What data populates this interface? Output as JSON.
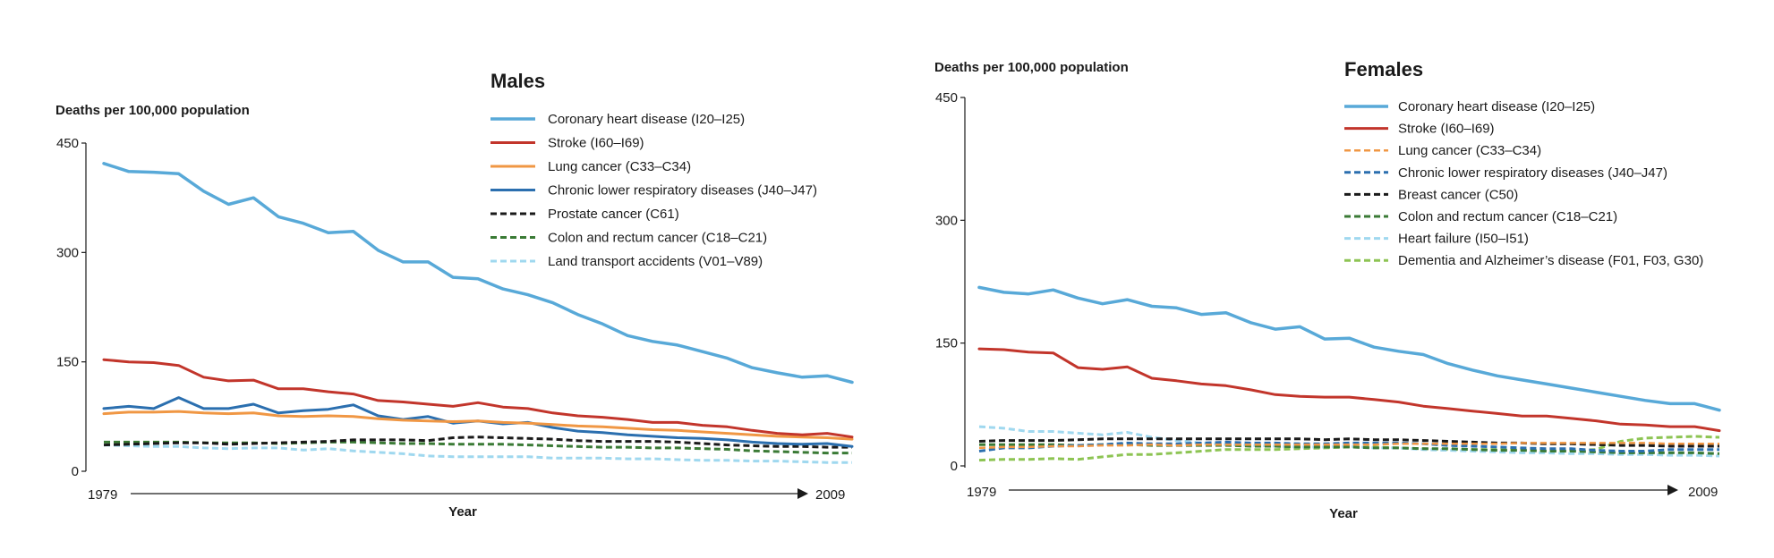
{
  "chart_data": [
    {
      "type": "line",
      "title": "Males",
      "ylabel": "Deaths per 100,000 population",
      "xlabel": "Year",
      "x_start_label": "1979",
      "x_end_label": "2009",
      "ylim": [
        0,
        450
      ],
      "yticks": [
        "0",
        "150",
        "300",
        "450"
      ],
      "x": [
        1979,
        1980,
        1981,
        1982,
        1983,
        1984,
        1985,
        1986,
        1987,
        1988,
        1989,
        1990,
        1991,
        1992,
        1993,
        1994,
        1995,
        1996,
        1997,
        1998,
        1999,
        2000,
        2001,
        2002,
        2003,
        2004,
        2005,
        2006,
        2007,
        2008,
        2009
      ],
      "legend_position": "top-right",
      "series": [
        {
          "name": "Coronary heart disease (I20–I25)",
          "color": "#58a9d8",
          "dash": false,
          "width": 3.5,
          "values": [
            422,
            411,
            410,
            408,
            384,
            366,
            375,
            349,
            340,
            327,
            329,
            303,
            287,
            287,
            266,
            264,
            250,
            242,
            231,
            215,
            202,
            186,
            178,
            173,
            164,
            155,
            142,
            135,
            129,
            131,
            122
          ]
        },
        {
          "name": "Stroke (I60–I69)",
          "color": "#c2352b",
          "dash": false,
          "width": 3,
          "values": [
            153,
            150,
            149,
            145,
            129,
            124,
            125,
            113,
            113,
            109,
            106,
            97,
            95,
            92,
            89,
            94,
            88,
            86,
            80,
            76,
            74,
            71,
            67,
            67,
            63,
            61,
            56,
            52,
            50,
            52,
            47
          ]
        },
        {
          "name": "Lung cancer (C33–C34)",
          "color": "#f09744",
          "dash": false,
          "width": 3,
          "values": [
            79,
            81,
            81,
            82,
            80,
            79,
            80,
            76,
            75,
            76,
            75,
            72,
            70,
            69,
            68,
            69,
            67,
            66,
            64,
            62,
            61,
            59,
            57,
            56,
            54,
            52,
            50,
            48,
            47,
            46,
            44
          ]
        },
        {
          "name": "Chronic lower respiratory diseases (J40–J47)",
          "color": "#2b6faf",
          "dash": false,
          "width": 3,
          "values": [
            86,
            89,
            86,
            101,
            86,
            86,
            92,
            80,
            83,
            85,
            91,
            76,
            71,
            75,
            66,
            69,
            65,
            67,
            60,
            55,
            53,
            50,
            48,
            46,
            45,
            43,
            40,
            38,
            37,
            38,
            34
          ]
        },
        {
          "name": "Prostate cancer (C61)",
          "color": "#1a1a1a",
          "dash": true,
          "width": 3,
          "values": [
            36,
            37,
            38,
            39,
            39,
            37,
            38,
            39,
            40,
            41,
            43,
            43,
            43,
            42,
            46,
            47,
            46,
            45,
            44,
            42,
            41,
            41,
            41,
            40,
            38,
            36,
            35,
            34,
            34,
            33,
            33
          ]
        },
        {
          "name": "Colon and rectum cancer (C18–C21)",
          "color": "#3a7a35",
          "dash": true,
          "width": 3,
          "values": [
            40,
            40,
            40,
            40,
            39,
            39,
            39,
            38,
            39,
            40,
            40,
            39,
            38,
            38,
            37,
            37,
            37,
            36,
            35,
            34,
            33,
            33,
            32,
            32,
            31,
            30,
            28,
            27,
            26,
            25,
            25
          ]
        },
        {
          "name": "Land transport accidents (V01–V89)",
          "color": "#9fd8ef",
          "dash": true,
          "width": 3,
          "values": [
            36,
            35,
            34,
            34,
            32,
            31,
            32,
            32,
            29,
            31,
            28,
            26,
            24,
            21,
            20,
            20,
            20,
            20,
            18,
            18,
            18,
            17,
            17,
            16,
            15,
            15,
            14,
            14,
            13,
            12,
            12
          ]
        }
      ]
    },
    {
      "type": "line",
      "title": "Females",
      "ylabel": "Deaths per 100,000 population",
      "xlabel": "Year",
      "x_start_label": "1979",
      "x_end_label": "2009",
      "ylim": [
        0,
        450
      ],
      "yticks": [
        "0",
        "150",
        "300",
        "450"
      ],
      "x": [
        1979,
        1980,
        1981,
        1982,
        1983,
        1984,
        1985,
        1986,
        1987,
        1988,
        1989,
        1990,
        1991,
        1992,
        1993,
        1994,
        1995,
        1996,
        1997,
        1998,
        1999,
        2000,
        2001,
        2002,
        2003,
        2004,
        2005,
        2006,
        2007,
        2008,
        2009
      ],
      "legend_position": "top-right",
      "series": [
        {
          "name": "Coronary heart disease (I20–I25)",
          "color": "#58a9d8",
          "dash": false,
          "width": 3.5,
          "values": [
            218,
            212,
            210,
            215,
            205,
            198,
            203,
            195,
            193,
            185,
            187,
            175,
            167,
            170,
            155,
            156,
            145,
            140,
            136,
            125,
            117,
            110,
            105,
            100,
            95,
            90,
            85,
            80,
            76,
            76,
            68
          ]
        },
        {
          "name": "Stroke (I60–I69)",
          "color": "#c2352b",
          "dash": false,
          "width": 3,
          "values": [
            143,
            142,
            139,
            138,
            120,
            118,
            121,
            107,
            104,
            100,
            98,
            93,
            87,
            85,
            84,
            84,
            81,
            78,
            73,
            70,
            67,
            64,
            61,
            61,
            58,
            55,
            51,
            50,
            48,
            48,
            43
          ]
        },
        {
          "name": "Lung cancer (C33–C34)",
          "color": "#f09744",
          "dash": true,
          "width": 2.5,
          "values": [
            22,
            23,
            23,
            24,
            24,
            25,
            25,
            26,
            25,
            26,
            26,
            26,
            26,
            26,
            26,
            26,
            26,
            27,
            27,
            27,
            27,
            27,
            28,
            28,
            28,
            28,
            28,
            28,
            27,
            27,
            27
          ]
        },
        {
          "name": "Chronic lower respiratory diseases (J40–J47)",
          "color": "#2b6faf",
          "dash": true,
          "width": 3,
          "values": [
            18,
            22,
            22,
            24,
            25,
            26,
            28,
            27,
            27,
            28,
            29,
            28,
            28,
            27,
            27,
            28,
            28,
            28,
            27,
            25,
            24,
            23,
            22,
            21,
            21,
            19,
            18,
            18,
            20,
            20,
            20
          ]
        },
        {
          "name": "Breast cancer (C50)",
          "color": "#1a1a1a",
          "dash": true,
          "width": 3,
          "values": [
            30,
            31,
            31,
            31,
            32,
            33,
            33,
            33,
            33,
            33,
            33,
            33,
            33,
            33,
            32,
            33,
            32,
            32,
            31,
            30,
            29,
            28,
            28,
            27,
            27,
            26,
            25,
            25,
            24,
            24,
            24
          ]
        },
        {
          "name": "Colon and rectum cancer (C18–C21)",
          "color": "#3a7a35",
          "dash": true,
          "width": 3,
          "values": [
            26,
            26,
            26,
            26,
            25,
            26,
            26,
            25,
            25,
            25,
            25,
            24,
            24,
            23,
            23,
            23,
            22,
            22,
            21,
            21,
            20,
            19,
            19,
            18,
            18,
            17,
            16,
            16,
            16,
            16,
            15
          ]
        },
        {
          "name": "Heart failure (I50–I51)",
          "color": "#9fd8ef",
          "dash": true,
          "width": 3,
          "values": [
            48,
            46,
            42,
            42,
            40,
            38,
            41,
            35,
            31,
            28,
            26,
            25,
            24,
            23,
            23,
            24,
            22,
            22,
            20,
            19,
            18,
            17,
            16,
            16,
            15,
            15,
            14,
            14,
            13,
            13,
            12
          ]
        },
        {
          "name": "Dementia and Alzheimer’s disease (F01, F03, G30)",
          "color": "#8dc453",
          "dash": true,
          "width": 3,
          "values": [
            7,
            8,
            8,
            9,
            8,
            11,
            14,
            14,
            16,
            18,
            20,
            20,
            20,
            21,
            22,
            23,
            23,
            22,
            21,
            20,
            20,
            20,
            20,
            19,
            19,
            20,
            30,
            34,
            35,
            36,
            35
          ]
        }
      ]
    }
  ]
}
